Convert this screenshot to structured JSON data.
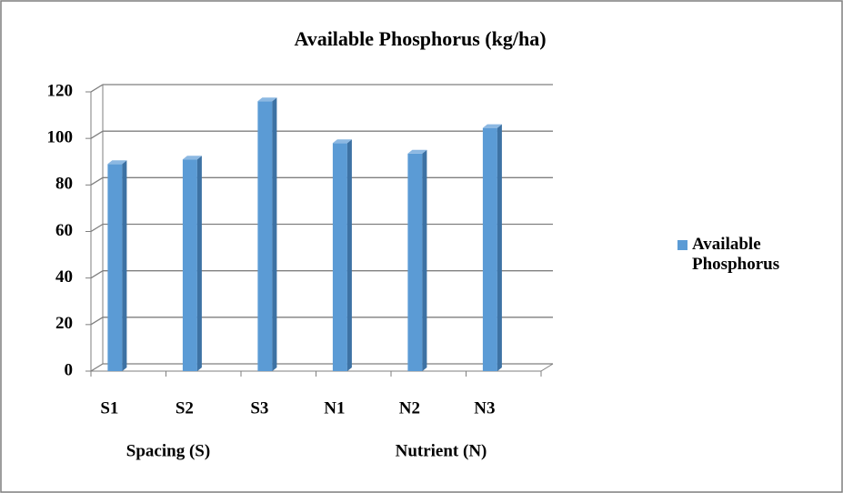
{
  "chart_data": {
    "type": "bar",
    "title": "Available Phosphorus (kg/ha)",
    "categories": [
      "S1",
      "S2",
      "S3",
      "N1",
      "N2",
      "N3"
    ],
    "group_labels": [
      "Spacing (S)",
      "Nutrient (N)"
    ],
    "series": [
      {
        "name": "Available Phosphorus",
        "color": "#5b9bd5",
        "values": [
          89,
          91,
          116,
          98,
          93.5,
          104.5
        ]
      }
    ],
    "ylim": [
      0,
      120
    ],
    "yticks": [
      0,
      20,
      40,
      60,
      80,
      100,
      120
    ],
    "grid": true,
    "legend": "right"
  }
}
